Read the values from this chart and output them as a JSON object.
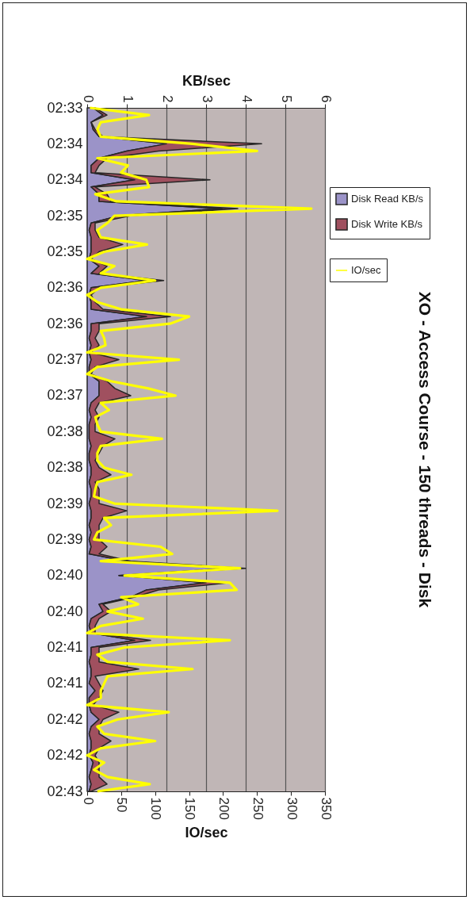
{
  "chart_data": {
    "type": "area",
    "title": "XO - Access Course - 150 threads - Disk",
    "x2label": "KB/sec",
    "xlabel": "IO/sec",
    "orientation": "horizontal",
    "categories": [
      "02:33",
      null,
      null,
      null,
      null,
      "02:34",
      null,
      null,
      null,
      null,
      "02:34",
      null,
      null,
      null,
      null,
      "02:35",
      null,
      null,
      null,
      null,
      "02:35",
      null,
      null,
      null,
      null,
      "02:36",
      null,
      null,
      null,
      null,
      "02:36",
      null,
      null,
      null,
      null,
      "02:37",
      null,
      null,
      null,
      null,
      "02:37",
      null,
      null,
      null,
      null,
      "02:38",
      null,
      null,
      null,
      null,
      "02:38",
      null,
      null,
      null,
      null,
      "02:39",
      null,
      null,
      null,
      null,
      "02:39",
      null,
      null,
      null,
      null,
      "02:40",
      null,
      null,
      null,
      null,
      "02:40",
      null,
      null,
      null,
      null,
      "02:41",
      null,
      null,
      null,
      null,
      "02:41",
      null,
      null,
      null,
      null,
      "02:42",
      null,
      null,
      null,
      null,
      "02:42",
      null,
      null,
      null,
      null,
      "02:43"
    ],
    "series": [
      {
        "name": "Disk Read KB/s",
        "axis": "x2",
        "color": "#9b93c8",
        "values": [
          0.15,
          0.4,
          0.1,
          0.15,
          0.3,
          2.0,
          1.0,
          0.3,
          0.1,
          0.1,
          1.2,
          0.1,
          0.3,
          0.3,
          3.4,
          0.8,
          0.1,
          0.05,
          0.1,
          0.1,
          0.1,
          0.05,
          0.3,
          0.1,
          1.5,
          0.1,
          0.05,
          0.1,
          0.1,
          1.5,
          0.1,
          0.1,
          0.05,
          0.1,
          0.05,
          0.1,
          0.05,
          0.05,
          0.3,
          0.3,
          0.3,
          0.1,
          0.05,
          0.1,
          0.05,
          0.05,
          0.05,
          0.1,
          0.05,
          0.05,
          0.1,
          0.1,
          0.05,
          0.1,
          0.1,
          0.05,
          0.1,
          0.1,
          0.05,
          0.1,
          0.05,
          0.1,
          0.05,
          1.0,
          3.6,
          0.8,
          3.0,
          1.5,
          1.1,
          0.3,
          0.4,
          0.1,
          0.05,
          0.1,
          1.2,
          0.1,
          0.1,
          0.05,
          0.1,
          0.1,
          0.05,
          0.2,
          0.05,
          0.05,
          0.1,
          0.3,
          0.1,
          0.05,
          0.1,
          0.1,
          0.05,
          0.15,
          0.1,
          0.05,
          0.1,
          0.05
        ]
      },
      {
        "name": "Disk Write KB/s",
        "axis": "x2",
        "color": "#a0505f",
        "values": [
          0.05,
          0.1,
          0.0,
          0.05,
          0.1,
          2.4,
          0.8,
          0.2,
          0.2,
          0.1,
          1.9,
          0.1,
          0.2,
          0.3,
          0.4,
          0.3,
          0.1,
          0.15,
          0.2,
          0.8,
          0.2,
          0.05,
          0.2,
          0.2,
          0.43,
          0.2,
          0.05,
          0.1,
          0.3,
          0.6,
          0.2,
          0.2,
          0.15,
          0.2,
          0.05,
          0.7,
          0.15,
          0.05,
          0.2,
          0.4,
          0.8,
          0.2,
          0.15,
          0.2,
          0.15,
          0.15,
          0.65,
          0.3,
          0.25,
          0.15,
          0.2,
          0.5,
          0.15,
          0.2,
          0.2,
          0.25,
          0.9,
          0.3,
          0.25,
          0.2,
          0.25,
          0.4,
          0.25,
          0.1,
          0.4,
          0.1,
          0.6,
          0.3,
          0.1,
          0.1,
          0.2,
          0.2,
          0.15,
          0.1,
          0.4,
          0.2,
          0.2,
          0.25,
          1.2,
          0.1,
          0.25,
          0.2,
          0.25,
          0.1,
          0.7,
          0.1,
          0.2,
          0.25,
          0.5,
          0.2,
          0.15,
          0.15,
          0.2,
          0.25,
          0.4,
          0.05
        ]
      },
      {
        "name": "IO/sec",
        "type": "line",
        "color": "#ffff00",
        "values": [
          4,
          91,
          20,
          15,
          20,
          155,
          250,
          15,
          60,
          50,
          87,
          91,
          12,
          43,
          330,
          40,
          30,
          15,
          20,
          88,
          25,
          0,
          40,
          20,
          100,
          20,
          0,
          15,
          50,
          150,
          122,
          20,
          25,
          27,
          0,
          135,
          15,
          0,
          35,
          90,
          130,
          20,
          32,
          12,
          15,
          20,
          110,
          20,
          15,
          15,
          25,
          65,
          15,
          12,
          10,
          40,
          280,
          25,
          35,
          15,
          10,
          108,
          125,
          20,
          225,
          55,
          210,
          220,
          50,
          75,
          30,
          82,
          20,
          0,
          210,
          55,
          15,
          30,
          155,
          30,
          25,
          20,
          20,
          0,
          120,
          45,
          15,
          25,
          100,
          20,
          0,
          25,
          10,
          30,
          92,
          15
        ]
      }
    ],
    "x2lim": [
      0,
      6
    ],
    "x2ticks": [
      0,
      1,
      2,
      3,
      4,
      5,
      6
    ],
    "xlim": [
      0,
      350
    ],
    "xticks": [
      0,
      50,
      100,
      150,
      200,
      250,
      300,
      350
    ],
    "stacked": true,
    "grid": "x",
    "legend": "right"
  }
}
